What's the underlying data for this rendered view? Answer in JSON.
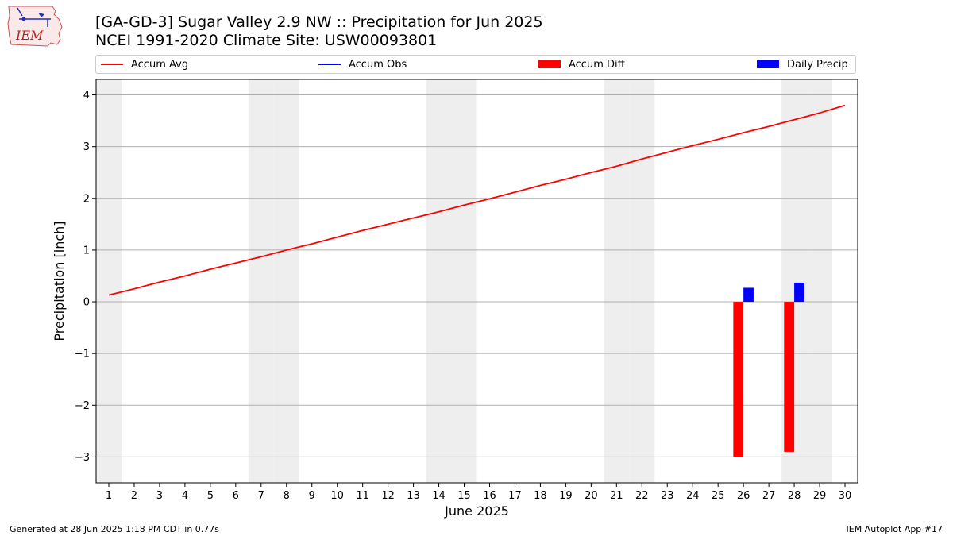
{
  "header": {
    "title_line1": "[GA-GD-3] Sugar Valley 2.9 NW :: Precipitation for Jun 2025",
    "title_line2": "NCEI 1991-2020 Climate Site: USW00093801",
    "logo_text": "IEM"
  },
  "legend": [
    {
      "label": "Accum Avg",
      "kind": "line",
      "color": "#ff0000"
    },
    {
      "label": "Accum Obs",
      "kind": "line",
      "color": "#0000ff"
    },
    {
      "label": "Accum Diff",
      "kind": "patch",
      "color": "#ff0000"
    },
    {
      "label": "Daily Precip",
      "kind": "patch",
      "color": "#0000ff"
    }
  ],
  "footer": {
    "left": "Generated at 28 Jun 2025 1:18 PM CDT in 0.77s",
    "right": "IEM Autoplot App #17"
  },
  "colors": {
    "accum_avg": "#ff0000",
    "accum_diff": "#ff0000",
    "daily_precip": "#0000ff",
    "weekend_band": "#eeeeee",
    "grid": "#b0b0b0"
  },
  "chart_data": {
    "type": "bar",
    "xlabel": "June 2025",
    "ylabel": "Precipitation [inch]",
    "xlim": [
      0.5,
      30.5
    ],
    "ylim": [
      -3.5,
      4.3
    ],
    "yticks": [
      4,
      3,
      2,
      1,
      0,
      -1,
      -2,
      -3
    ],
    "ytick_labels": [
      "4",
      "3",
      "2",
      "1",
      "0",
      "−1",
      "−2",
      "−3"
    ],
    "xticks": [
      1,
      2,
      3,
      4,
      5,
      6,
      7,
      8,
      9,
      10,
      11,
      12,
      13,
      14,
      15,
      16,
      17,
      18,
      19,
      20,
      21,
      22,
      23,
      24,
      25,
      26,
      27,
      28,
      29,
      30
    ],
    "grid": "horizontal",
    "weekend_days": [
      1,
      7,
      8,
      14,
      15,
      21,
      22,
      28,
      29
    ],
    "series": [
      {
        "name": "Accum Avg",
        "type": "line",
        "color": "#ff0000",
        "x": [
          1,
          2,
          3,
          4,
          5,
          6,
          7,
          8,
          9,
          10,
          11,
          12,
          13,
          14,
          15,
          16,
          17,
          18,
          19,
          20,
          21,
          22,
          23,
          24,
          25,
          26,
          27,
          28,
          29,
          30
        ],
        "values": [
          0.13,
          0.25,
          0.38,
          0.5,
          0.63,
          0.75,
          0.87,
          1.0,
          1.12,
          1.25,
          1.38,
          1.5,
          1.62,
          1.74,
          1.87,
          1.99,
          2.12,
          2.25,
          2.37,
          2.5,
          2.62,
          2.76,
          2.89,
          3.02,
          3.14,
          3.27,
          3.39,
          3.52,
          3.65,
          3.8
        ]
      },
      {
        "name": "Accum Diff",
        "type": "bar",
        "color": "#ff0000",
        "x": [
          26,
          28
        ],
        "values": [
          -3.0,
          -2.9
        ]
      },
      {
        "name": "Daily Precip",
        "type": "bar",
        "color": "#0000ff",
        "x": [
          26,
          28
        ],
        "values": [
          0.27,
          0.37
        ]
      }
    ]
  }
}
